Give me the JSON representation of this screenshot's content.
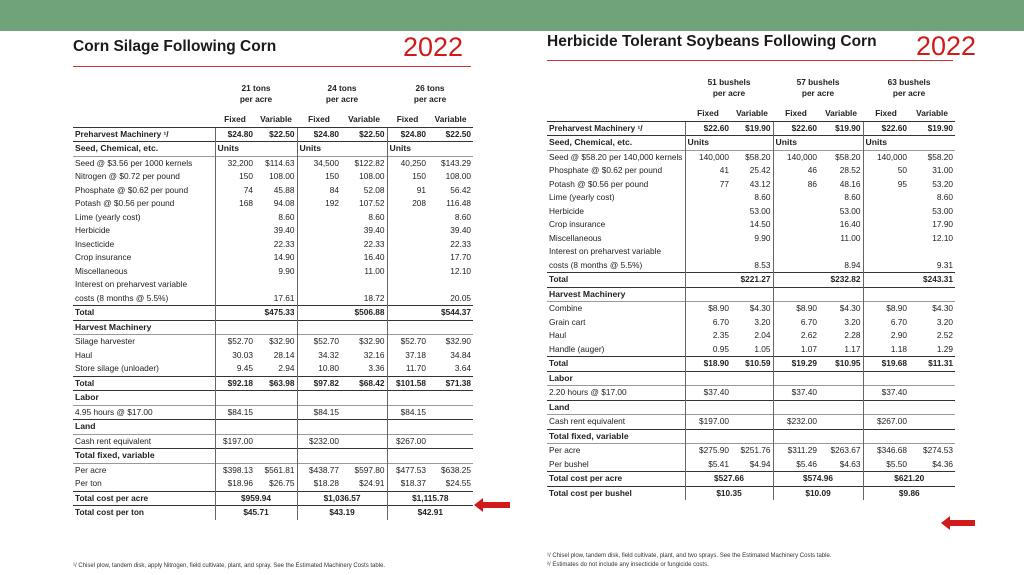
{
  "left": {
    "title": "Corn Silage Following Corn",
    "year": "2022",
    "col_groups": [
      {
        "line1": "21 tons",
        "line2": "per acre"
      },
      {
        "line1": "24 tons",
        "line2": "per acre"
      },
      {
        "line1": "26 tons",
        "line2": "per acre"
      }
    ],
    "fixed_label": "Fixed",
    "variable_label": "Variable",
    "rows": [
      {
        "type": "data",
        "bold": true,
        "label": "Preharvest Machinery ¹/",
        "cells": [
          "$24.80",
          "$22.50",
          "$24.80",
          "$22.50",
          "$24.80",
          "$22.50"
        ]
      },
      {
        "type": "section",
        "label": "Seed, Chemical, etc.",
        "cells": [
          "Units",
          "",
          "Units",
          "",
          "Units",
          ""
        ]
      },
      {
        "type": "data",
        "label": "Seed @ $3.56 per 1000 kernels",
        "cells": [
          "32,200",
          "$114.63",
          "34,500",
          "$122.82",
          "40,250",
          "$143.29"
        ]
      },
      {
        "type": "data",
        "label": "Nitrogen @ $0.72 per pound",
        "cells": [
          "150",
          "108.00",
          "150",
          "108.00",
          "150",
          "108.00"
        ]
      },
      {
        "type": "data",
        "label": "Phosphate @ $0.62 per pound",
        "cells": [
          "74",
          "45.88",
          "84",
          "52.08",
          "91",
          "56.42"
        ]
      },
      {
        "type": "data",
        "label": "Potash @ $0.56 per pound",
        "cells": [
          "168",
          "94.08",
          "192",
          "107.52",
          "208",
          "116.48"
        ]
      },
      {
        "type": "data",
        "label": "Lime (yearly cost)",
        "cells": [
          "",
          "8.60",
          "",
          "8.60",
          "",
          "8.60"
        ]
      },
      {
        "type": "data",
        "label": "Herbicide",
        "cells": [
          "",
          "39.40",
          "",
          "39.40",
          "",
          "39.40"
        ]
      },
      {
        "type": "data",
        "label": "Insecticide",
        "cells": [
          "",
          "22.33",
          "",
          "22.33",
          "",
          "22.33"
        ]
      },
      {
        "type": "data",
        "label": "Crop insurance",
        "cells": [
          "",
          "14.90",
          "",
          "16.40",
          "",
          "17.70"
        ]
      },
      {
        "type": "data",
        "label": "Miscellaneous",
        "cells": [
          "",
          "9.90",
          "",
          "11.00",
          "",
          "12.10"
        ]
      },
      {
        "type": "data",
        "label": "Interest on preharvest variable",
        "cells": [
          "",
          "",
          "",
          "",
          "",
          ""
        ]
      },
      {
        "type": "data",
        "label": "costs (8 months @ 5.5%)",
        "cells": [
          "",
          "17.61",
          "",
          "18.72",
          "",
          "20.05"
        ]
      },
      {
        "type": "total",
        "label": "Total",
        "cells": [
          "",
          "$475.33",
          "",
          "$506.88",
          "",
          "$544.37"
        ]
      },
      {
        "type": "section",
        "label": "Harvest Machinery",
        "cells": [
          "",
          "",
          "",
          "",
          "",
          ""
        ]
      },
      {
        "type": "data",
        "label": "Silage harvester",
        "cells": [
          "$52.70",
          "$32.90",
          "$52.70",
          "$32.90",
          "$52.70",
          "$32.90"
        ]
      },
      {
        "type": "data",
        "label": "Haul",
        "cells": [
          "30.03",
          "28.14",
          "34.32",
          "32.16",
          "37.18",
          "34.84"
        ]
      },
      {
        "type": "data",
        "label": "Store silage (unloader)",
        "cells": [
          "9.45",
          "2.94",
          "10.80",
          "3.36",
          "11.70",
          "3.64"
        ]
      },
      {
        "type": "total",
        "label": "Total",
        "cells": [
          "$92.18",
          "$63.98",
          "$97.82",
          "$68.42",
          "$101.58",
          "$71.38"
        ]
      },
      {
        "type": "section",
        "label": "Labor",
        "cells": [
          "",
          "",
          "",
          "",
          "",
          ""
        ]
      },
      {
        "type": "data",
        "line": true,
        "label": "4.95 hours @ $17.00",
        "cells": [
          "$84.15",
          "",
          "$84.15",
          "",
          "$84.15",
          ""
        ]
      },
      {
        "type": "section",
        "label": "Land",
        "cells": [
          "",
          "",
          "",
          "",
          "",
          ""
        ]
      },
      {
        "type": "data",
        "line": true,
        "label": "Cash rent equivalent",
        "cells": [
          "$197.00",
          "",
          "$232.00",
          "",
          "$267.00",
          ""
        ]
      },
      {
        "type": "section",
        "label": "Total fixed, variable",
        "cells": [
          "",
          "",
          "",
          "",
          "",
          ""
        ]
      },
      {
        "type": "data",
        "line": true,
        "label": "Per acre",
        "cells": [
          "$398.13",
          "$561.81",
          "$438.77",
          "$597.80",
          "$477.53",
          "$638.25"
        ]
      },
      {
        "type": "data",
        "label": "Per ton",
        "cells": [
          "$18.96",
          "$26.75",
          "$18.28",
          "$24.91",
          "$18.37",
          "$24.55"
        ]
      },
      {
        "type": "span",
        "label": "Total cost per acre",
        "cells": [
          "$959.94",
          "$1,036.57",
          "$1,115.78"
        ]
      },
      {
        "type": "span",
        "label": "Total cost per ton",
        "cells": [
          "$45.71",
          "$43.19",
          "$42.91"
        ]
      }
    ],
    "footnote": "¹/ Chisel plow, tandem disk, apply Nitrogen, field cultivate, plant, and spray. See the Estimated Machinery Costs table."
  },
  "right": {
    "title": "Herbicide Tolerant Soybeans Following Corn",
    "year": "2022",
    "col_groups": [
      {
        "line1": "51 bushels",
        "line2": "per acre"
      },
      {
        "line1": "57 bushels",
        "line2": "per acre"
      },
      {
        "line1": "63 bushels",
        "line2": "per acre"
      }
    ],
    "fixed_label": "Fixed",
    "variable_label": "Variable",
    "rows": [
      {
        "type": "data",
        "bold": true,
        "label": "Preharvest Machinery ¹/",
        "cells": [
          "$22.60",
          "$19.90",
          "$22.60",
          "$19.90",
          "$22.60",
          "$19.90"
        ]
      },
      {
        "type": "section",
        "label": "Seed, Chemical, etc.",
        "cells": [
          "Units",
          "",
          "Units",
          "",
          "Units",
          ""
        ]
      },
      {
        "type": "data",
        "label": "Seed @ $58.20 per 140,000 kernels",
        "cells": [
          "140,000",
          "$58.20",
          "140,000",
          "$58.20",
          "140,000",
          "$58.20"
        ]
      },
      {
        "type": "data",
        "label": "Phosphate @ $0.62 per pound",
        "cells": [
          "41",
          "25.42",
          "46",
          "28.52",
          "50",
          "31.00"
        ]
      },
      {
        "type": "data",
        "label": "Potash @ $0.56 per pound",
        "cells": [
          "77",
          "43.12",
          "86",
          "48.16",
          "95",
          "53.20"
        ]
      },
      {
        "type": "data",
        "label": "Lime (yearly cost)",
        "cells": [
          "",
          "8.60",
          "",
          "8.60",
          "",
          "8.60"
        ]
      },
      {
        "type": "data",
        "label": "Herbicide",
        "cells": [
          "",
          "53.00",
          "",
          "53.00",
          "",
          "53.00"
        ]
      },
      {
        "type": "data",
        "label": "Crop insurance",
        "cells": [
          "",
          "14.50",
          "",
          "16.40",
          "",
          "17.90"
        ]
      },
      {
        "type": "data",
        "label": "Miscellaneous",
        "cells": [
          "",
          "9.90",
          "",
          "11.00",
          "",
          "12.10"
        ]
      },
      {
        "type": "data",
        "label": "Interest on preharvest variable",
        "cells": [
          "",
          "",
          "",
          "",
          "",
          ""
        ]
      },
      {
        "type": "data",
        "label": "costs (8 months @ 5.5%)",
        "cells": [
          "",
          "8.53",
          "",
          "8.94",
          "",
          "9.31"
        ]
      },
      {
        "type": "total",
        "label": "Total",
        "cells": [
          "",
          "$221.27",
          "",
          "$232.82",
          "",
          "$243.31"
        ]
      },
      {
        "type": "section",
        "label": "Harvest Machinery",
        "cells": [
          "",
          "",
          "",
          "",
          "",
          ""
        ]
      },
      {
        "type": "data",
        "label": "Combine",
        "cells": [
          "$8.90",
          "$4.30",
          "$8.90",
          "$4.30",
          "$8.90",
          "$4.30"
        ]
      },
      {
        "type": "data",
        "label": "Grain cart",
        "cells": [
          "6.70",
          "3.20",
          "6.70",
          "3.20",
          "6.70",
          "3.20"
        ]
      },
      {
        "type": "data",
        "label": "Haul",
        "cells": [
          "2.35",
          "2.04",
          "2.62",
          "2.28",
          "2.90",
          "2.52"
        ]
      },
      {
        "type": "data",
        "label": "Handle (auger)",
        "cells": [
          "0.95",
          "1.05",
          "1.07",
          "1.17",
          "1.18",
          "1.29"
        ]
      },
      {
        "type": "total",
        "label": "Total",
        "cells": [
          "$18.90",
          "$10.59",
          "$19.29",
          "$10.95",
          "$19.68",
          "$11.31"
        ]
      },
      {
        "type": "section",
        "label": "Labor",
        "cells": [
          "",
          "",
          "",
          "",
          "",
          ""
        ]
      },
      {
        "type": "data",
        "line": true,
        "label": "2.20 hours @ $17.00",
        "cells": [
          "$37.40",
          "",
          "$37.40",
          "",
          "$37.40",
          ""
        ]
      },
      {
        "type": "section",
        "label": "Land",
        "cells": [
          "",
          "",
          "",
          "",
          "",
          ""
        ]
      },
      {
        "type": "data",
        "line": true,
        "label": "Cash rent equivalent",
        "cells": [
          "$197.00",
          "",
          "$232.00",
          "",
          "$267.00",
          ""
        ]
      },
      {
        "type": "section",
        "label": "Total fixed, variable",
        "cells": [
          "",
          "",
          "",
          "",
          "",
          ""
        ]
      },
      {
        "type": "data",
        "line": true,
        "label": "Per acre",
        "cells": [
          "$275.90",
          "$251.76",
          "$311.29",
          "$263.67",
          "$346.68",
          "$274.53"
        ]
      },
      {
        "type": "data",
        "label": "Per bushel",
        "cells": [
          "$5.41",
          "$4.94",
          "$5.46",
          "$4.63",
          "$5.50",
          "$4.36"
        ]
      },
      {
        "type": "span",
        "label": "Total cost per acre",
        "cells": [
          "$527.66",
          "$574.96",
          "$621.20"
        ]
      },
      {
        "type": "span",
        "label": "Total cost per bushel",
        "cells": [
          "$10.35",
          "$10.09",
          "$9.86"
        ]
      }
    ],
    "footnotes": [
      "¹/ Chisel plow, tandem disk, field cultivate, plant, and two sprays. See the Estimated Machinery Costs table.",
      "²/ Estimates do not include any insecticide or fungicide costs."
    ]
  },
  "colors": {
    "accent_red": "#d11a1a",
    "band_green": "#6fa37a"
  }
}
